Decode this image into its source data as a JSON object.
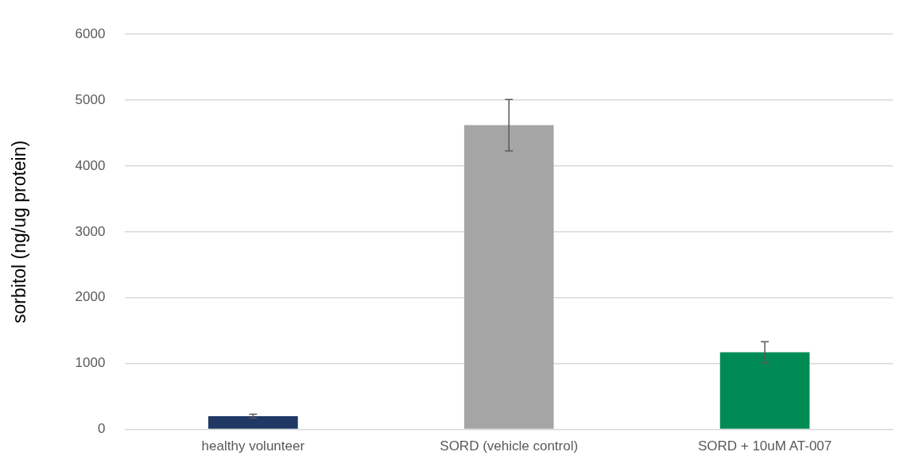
{
  "chart_data": {
    "type": "bar",
    "ylabel": "sorbitol (ng/ug protein)",
    "categories": [
      "healthy volunteer",
      "SORD (vehicle control)",
      "SORD + 10uM AT-007"
    ],
    "values": [
      200,
      4620,
      1170
    ],
    "colors": [
      "#1f3864",
      "#a5a5a5",
      "#008b55"
    ],
    "errors": [
      30,
      390,
      160
    ],
    "ylim": [
      0,
      6000
    ],
    "yticks": [
      0,
      1000,
      2000,
      3000,
      4000,
      5000,
      6000
    ],
    "grid": "y",
    "legend": false
  }
}
